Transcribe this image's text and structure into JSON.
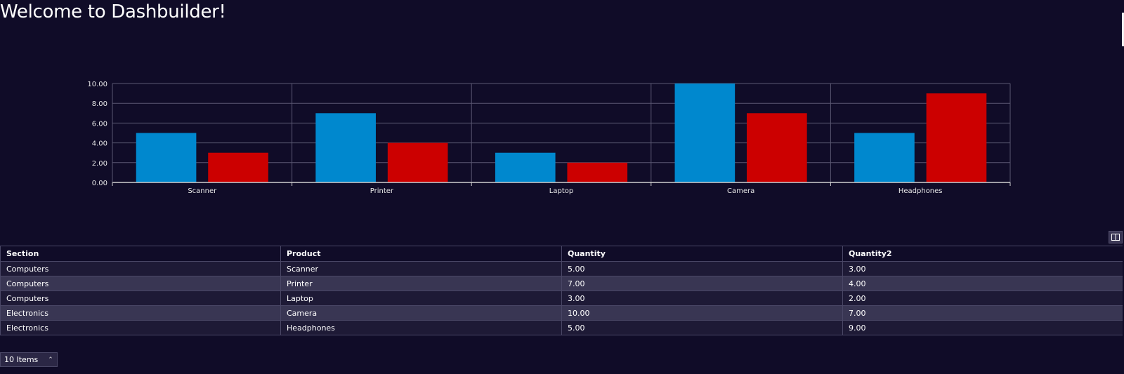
{
  "page": {
    "title": "Welcome to Dashbuilder!"
  },
  "colors": {
    "background": "#100c28",
    "series_quantity": "#0088ce",
    "series_quantity2": "#cc0000",
    "grid": "#5a5772",
    "row_odd": "#1e1a36",
    "row_even": "#393653"
  },
  "chart_data": {
    "type": "bar",
    "title": "",
    "xlabel": "",
    "ylabel": "",
    "categories": [
      "Scanner",
      "Printer",
      "Laptop",
      "Camera",
      "Headphones"
    ],
    "series": [
      {
        "values": [
          5,
          7,
          3,
          10,
          5
        ],
        "color": "#0088ce"
      },
      {
        "values": [
          3,
          4,
          2,
          7,
          9
        ],
        "color": "#cc0000"
      }
    ],
    "ylim": [
      0,
      10
    ],
    "yticks": [
      "0.00",
      "2.00",
      "4.00",
      "6.00",
      "8.00",
      "10.00"
    ],
    "grid": true,
    "legend": "none"
  },
  "table": {
    "column_picker_icon": "columns-icon",
    "headers": [
      "Section",
      "Product",
      "Quantity",
      "Quantity2"
    ],
    "rows": [
      [
        "Computers",
        "Scanner",
        "5.00",
        "3.00"
      ],
      [
        "Computers",
        "Printer",
        "7.00",
        "4.00"
      ],
      [
        "Computers",
        "Laptop",
        "3.00",
        "2.00"
      ],
      [
        "Electronics",
        "Camera",
        "10.00",
        "7.00"
      ],
      [
        "Electronics",
        "Headphones",
        "5.00",
        "9.00"
      ]
    ]
  },
  "pager": {
    "label": "10 Items",
    "caret_icon": "chevron-up-icon"
  }
}
